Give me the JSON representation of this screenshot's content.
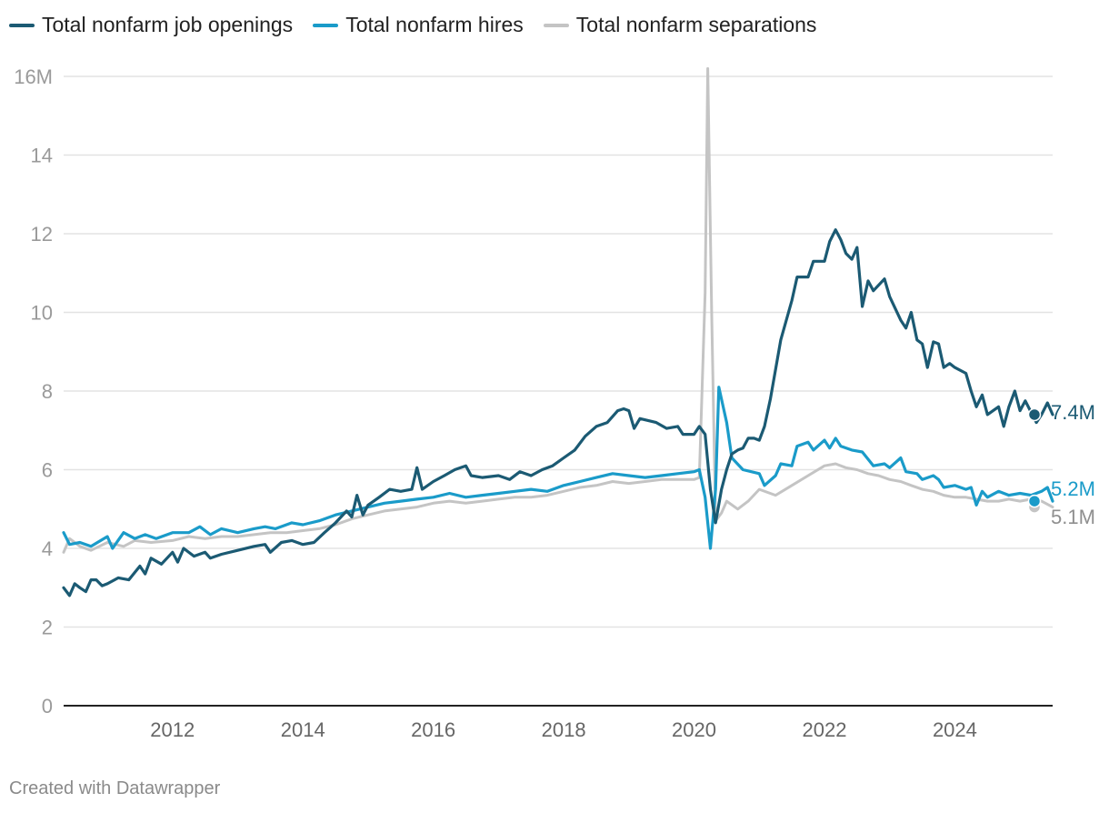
{
  "chart_data": {
    "type": "line",
    "title": "",
    "xlabel": "",
    "ylabel": "",
    "ylim": [
      0,
      16
    ],
    "xlim": [
      2010.33,
      2025.5
    ],
    "y_ticks": [
      0,
      2,
      4,
      6,
      8,
      10,
      12,
      14,
      16
    ],
    "y_tick_labels": [
      "0",
      "2",
      "4",
      "6",
      "8",
      "10",
      "12",
      "14",
      "16M"
    ],
    "x_ticks": [
      2012,
      2014,
      2016,
      2018,
      2020,
      2022,
      2024
    ],
    "x_tick_labels": [
      "2012",
      "2014",
      "2016",
      "2018",
      "2020",
      "2022",
      "2024"
    ],
    "legend_position": "top-left",
    "series": [
      {
        "name": "Total nonfarm job openings",
        "color": "#1b5a73",
        "end_label": "7.4M",
        "points": [
          [
            2010.33,
            3.0
          ],
          [
            2010.42,
            2.8
          ],
          [
            2010.5,
            3.1
          ],
          [
            2010.58,
            3.0
          ],
          [
            2010.67,
            2.9
          ],
          [
            2010.75,
            3.2
          ],
          [
            2010.83,
            3.2
          ],
          [
            2010.92,
            3.05
          ],
          [
            2011.0,
            3.1
          ],
          [
            2011.17,
            3.25
          ],
          [
            2011.33,
            3.2
          ],
          [
            2011.5,
            3.55
          ],
          [
            2011.58,
            3.35
          ],
          [
            2011.67,
            3.75
          ],
          [
            2011.83,
            3.6
          ],
          [
            2012.0,
            3.9
          ],
          [
            2012.08,
            3.65
          ],
          [
            2012.17,
            4.0
          ],
          [
            2012.33,
            3.8
          ],
          [
            2012.5,
            3.9
          ],
          [
            2012.58,
            3.75
          ],
          [
            2012.75,
            3.85
          ],
          [
            2013.0,
            3.95
          ],
          [
            2013.25,
            4.05
          ],
          [
            2013.42,
            4.1
          ],
          [
            2013.5,
            3.9
          ],
          [
            2013.67,
            4.15
          ],
          [
            2013.83,
            4.2
          ],
          [
            2014.0,
            4.1
          ],
          [
            2014.17,
            4.15
          ],
          [
            2014.33,
            4.4
          ],
          [
            2014.5,
            4.65
          ],
          [
            2014.67,
            4.95
          ],
          [
            2014.75,
            4.8
          ],
          [
            2014.83,
            5.35
          ],
          [
            2014.92,
            4.85
          ],
          [
            2015.0,
            5.1
          ],
          [
            2015.17,
            5.3
          ],
          [
            2015.33,
            5.5
          ],
          [
            2015.5,
            5.45
          ],
          [
            2015.67,
            5.5
          ],
          [
            2015.75,
            6.05
          ],
          [
            2015.83,
            5.5
          ],
          [
            2016.0,
            5.7
          ],
          [
            2016.17,
            5.85
          ],
          [
            2016.33,
            6.0
          ],
          [
            2016.5,
            6.1
          ],
          [
            2016.58,
            5.85
          ],
          [
            2016.75,
            5.8
          ],
          [
            2017.0,
            5.85
          ],
          [
            2017.17,
            5.75
          ],
          [
            2017.33,
            5.95
          ],
          [
            2017.5,
            5.85
          ],
          [
            2017.67,
            6.0
          ],
          [
            2017.83,
            6.1
          ],
          [
            2018.0,
            6.3
          ],
          [
            2018.17,
            6.5
          ],
          [
            2018.33,
            6.85
          ],
          [
            2018.5,
            7.1
          ],
          [
            2018.67,
            7.2
          ],
          [
            2018.83,
            7.5
          ],
          [
            2018.92,
            7.55
          ],
          [
            2019.0,
            7.5
          ],
          [
            2019.08,
            7.05
          ],
          [
            2019.17,
            7.3
          ],
          [
            2019.42,
            7.2
          ],
          [
            2019.58,
            7.05
          ],
          [
            2019.75,
            7.1
          ],
          [
            2019.83,
            6.9
          ],
          [
            2020.0,
            6.9
          ],
          [
            2020.08,
            7.1
          ],
          [
            2020.17,
            6.9
          ],
          [
            2020.25,
            5.5
          ],
          [
            2020.33,
            4.65
          ],
          [
            2020.42,
            5.5
          ],
          [
            2020.5,
            6.0
          ],
          [
            2020.58,
            6.4
          ],
          [
            2020.67,
            6.5
          ],
          [
            2020.75,
            6.55
          ],
          [
            2020.83,
            6.8
          ],
          [
            2020.92,
            6.8
          ],
          [
            2021.0,
            6.75
          ],
          [
            2021.08,
            7.1
          ],
          [
            2021.17,
            7.8
          ],
          [
            2021.33,
            9.3
          ],
          [
            2021.5,
            10.3
          ],
          [
            2021.58,
            10.9
          ],
          [
            2021.75,
            10.9
          ],
          [
            2021.83,
            11.3
          ],
          [
            2022.0,
            11.3
          ],
          [
            2022.08,
            11.8
          ],
          [
            2022.17,
            12.1
          ],
          [
            2022.25,
            11.85
          ],
          [
            2022.33,
            11.5
          ],
          [
            2022.42,
            11.35
          ],
          [
            2022.5,
            11.65
          ],
          [
            2022.58,
            10.15
          ],
          [
            2022.67,
            10.8
          ],
          [
            2022.75,
            10.55
          ],
          [
            2022.92,
            10.85
          ],
          [
            2023.0,
            10.4
          ],
          [
            2023.17,
            9.8
          ],
          [
            2023.25,
            9.6
          ],
          [
            2023.33,
            10.0
          ],
          [
            2023.42,
            9.3
          ],
          [
            2023.5,
            9.2
          ],
          [
            2023.58,
            8.6
          ],
          [
            2023.67,
            9.25
          ],
          [
            2023.75,
            9.2
          ],
          [
            2023.83,
            8.6
          ],
          [
            2023.92,
            8.7
          ],
          [
            2024.0,
            8.6
          ],
          [
            2024.17,
            8.45
          ],
          [
            2024.25,
            8.0
          ],
          [
            2024.33,
            7.6
          ],
          [
            2024.42,
            7.9
          ],
          [
            2024.5,
            7.4
          ],
          [
            2024.67,
            7.6
          ],
          [
            2024.75,
            7.1
          ],
          [
            2024.83,
            7.6
          ],
          [
            2024.92,
            8.0
          ],
          [
            2025.0,
            7.5
          ],
          [
            2025.08,
            7.75
          ],
          [
            2025.25,
            7.2
          ],
          [
            2025.33,
            7.4
          ],
          [
            2025.42,
            7.7
          ],
          [
            2025.5,
            7.4
          ]
        ]
      },
      {
        "name": "Total nonfarm hires",
        "color": "#1a9bc9",
        "end_label": "5.2M",
        "points": [
          [
            2010.33,
            4.4
          ],
          [
            2010.42,
            4.1
          ],
          [
            2010.58,
            4.15
          ],
          [
            2010.75,
            4.05
          ],
          [
            2011.0,
            4.3
          ],
          [
            2011.08,
            4.0
          ],
          [
            2011.25,
            4.4
          ],
          [
            2011.42,
            4.25
          ],
          [
            2011.58,
            4.35
          ],
          [
            2011.75,
            4.25
          ],
          [
            2012.0,
            4.4
          ],
          [
            2012.25,
            4.4
          ],
          [
            2012.42,
            4.55
          ],
          [
            2012.58,
            4.35
          ],
          [
            2012.75,
            4.5
          ],
          [
            2013.0,
            4.4
          ],
          [
            2013.25,
            4.5
          ],
          [
            2013.42,
            4.55
          ],
          [
            2013.58,
            4.5
          ],
          [
            2013.83,
            4.65
          ],
          [
            2014.0,
            4.6
          ],
          [
            2014.25,
            4.7
          ],
          [
            2014.5,
            4.85
          ],
          [
            2014.75,
            4.95
          ],
          [
            2015.0,
            5.05
          ],
          [
            2015.25,
            5.15
          ],
          [
            2015.5,
            5.2
          ],
          [
            2015.75,
            5.25
          ],
          [
            2016.0,
            5.3
          ],
          [
            2016.25,
            5.4
          ],
          [
            2016.5,
            5.3
          ],
          [
            2016.75,
            5.35
          ],
          [
            2017.0,
            5.4
          ],
          [
            2017.25,
            5.45
          ],
          [
            2017.5,
            5.5
          ],
          [
            2017.75,
            5.45
          ],
          [
            2018.0,
            5.6
          ],
          [
            2018.25,
            5.7
          ],
          [
            2018.5,
            5.8
          ],
          [
            2018.75,
            5.9
          ],
          [
            2019.0,
            5.85
          ],
          [
            2019.25,
            5.8
          ],
          [
            2019.5,
            5.85
          ],
          [
            2019.75,
            5.9
          ],
          [
            2020.0,
            5.95
          ],
          [
            2020.08,
            6.0
          ],
          [
            2020.17,
            5.3
          ],
          [
            2020.25,
            4.0
          ],
          [
            2020.33,
            5.5
          ],
          [
            2020.38,
            8.1
          ],
          [
            2020.5,
            7.2
          ],
          [
            2020.58,
            6.3
          ],
          [
            2020.75,
            6.0
          ],
          [
            2021.0,
            5.9
          ],
          [
            2021.08,
            5.6
          ],
          [
            2021.25,
            5.85
          ],
          [
            2021.33,
            6.15
          ],
          [
            2021.5,
            6.1
          ],
          [
            2021.58,
            6.6
          ],
          [
            2021.75,
            6.7
          ],
          [
            2021.83,
            6.5
          ],
          [
            2022.0,
            6.75
          ],
          [
            2022.08,
            6.55
          ],
          [
            2022.17,
            6.8
          ],
          [
            2022.25,
            6.6
          ],
          [
            2022.42,
            6.5
          ],
          [
            2022.58,
            6.45
          ],
          [
            2022.75,
            6.1
          ],
          [
            2022.92,
            6.15
          ],
          [
            2023.0,
            6.05
          ],
          [
            2023.17,
            6.3
          ],
          [
            2023.25,
            5.95
          ],
          [
            2023.42,
            5.9
          ],
          [
            2023.5,
            5.75
          ],
          [
            2023.67,
            5.85
          ],
          [
            2023.75,
            5.75
          ],
          [
            2023.83,
            5.55
          ],
          [
            2024.0,
            5.6
          ],
          [
            2024.17,
            5.5
          ],
          [
            2024.25,
            5.55
          ],
          [
            2024.33,
            5.1
          ],
          [
            2024.42,
            5.45
          ],
          [
            2024.5,
            5.3
          ],
          [
            2024.67,
            5.45
          ],
          [
            2024.83,
            5.35
          ],
          [
            2025.0,
            5.4
          ],
          [
            2025.17,
            5.35
          ],
          [
            2025.33,
            5.45
          ],
          [
            2025.42,
            5.55
          ],
          [
            2025.5,
            5.2
          ]
        ]
      },
      {
        "name": "Total nonfarm separations",
        "color": "#c4c4c4",
        "end_label": "5.1M",
        "points": [
          [
            2010.33,
            3.9
          ],
          [
            2010.42,
            4.25
          ],
          [
            2010.58,
            4.05
          ],
          [
            2010.75,
            3.95
          ],
          [
            2011.0,
            4.15
          ],
          [
            2011.25,
            4.05
          ],
          [
            2011.42,
            4.2
          ],
          [
            2011.67,
            4.15
          ],
          [
            2012.0,
            4.2
          ],
          [
            2012.25,
            4.3
          ],
          [
            2012.5,
            4.25
          ],
          [
            2012.75,
            4.3
          ],
          [
            2013.0,
            4.3
          ],
          [
            2013.25,
            4.35
          ],
          [
            2013.5,
            4.4
          ],
          [
            2013.75,
            4.4
          ],
          [
            2014.0,
            4.45
          ],
          [
            2014.25,
            4.5
          ],
          [
            2014.5,
            4.6
          ],
          [
            2014.75,
            4.75
          ],
          [
            2015.0,
            4.85
          ],
          [
            2015.25,
            4.95
          ],
          [
            2015.5,
            5.0
          ],
          [
            2015.75,
            5.05
          ],
          [
            2016.0,
            5.15
          ],
          [
            2016.25,
            5.2
          ],
          [
            2016.5,
            5.15
          ],
          [
            2016.75,
            5.2
          ],
          [
            2017.0,
            5.25
          ],
          [
            2017.25,
            5.3
          ],
          [
            2017.5,
            5.3
          ],
          [
            2017.75,
            5.35
          ],
          [
            2018.0,
            5.45
          ],
          [
            2018.25,
            5.55
          ],
          [
            2018.5,
            5.6
          ],
          [
            2018.75,
            5.7
          ],
          [
            2019.0,
            5.65
          ],
          [
            2019.25,
            5.7
          ],
          [
            2019.5,
            5.75
          ],
          [
            2019.75,
            5.75
          ],
          [
            2020.0,
            5.75
          ],
          [
            2020.08,
            5.8
          ],
          [
            2020.17,
            10.5
          ],
          [
            2020.21,
            16.2
          ],
          [
            2020.27,
            10.0
          ],
          [
            2020.33,
            4.7
          ],
          [
            2020.42,
            4.9
          ],
          [
            2020.5,
            5.2
          ],
          [
            2020.67,
            5.0
          ],
          [
            2020.83,
            5.2
          ],
          [
            2021.0,
            5.5
          ],
          [
            2021.25,
            5.35
          ],
          [
            2021.5,
            5.6
          ],
          [
            2021.75,
            5.85
          ],
          [
            2022.0,
            6.1
          ],
          [
            2022.17,
            6.15
          ],
          [
            2022.33,
            6.05
          ],
          [
            2022.5,
            6.0
          ],
          [
            2022.67,
            5.9
          ],
          [
            2022.83,
            5.85
          ],
          [
            2023.0,
            5.75
          ],
          [
            2023.17,
            5.7
          ],
          [
            2023.33,
            5.6
          ],
          [
            2023.5,
            5.5
          ],
          [
            2023.67,
            5.45
          ],
          [
            2023.83,
            5.35
          ],
          [
            2024.0,
            5.3
          ],
          [
            2024.17,
            5.3
          ],
          [
            2024.33,
            5.25
          ],
          [
            2024.5,
            5.2
          ],
          [
            2024.67,
            5.2
          ],
          [
            2024.83,
            5.25
          ],
          [
            2025.0,
            5.2
          ],
          [
            2025.17,
            5.25
          ],
          [
            2025.33,
            5.2
          ],
          [
            2025.5,
            5.05
          ]
        ]
      }
    ]
  },
  "credit": "Created with Datawrapper"
}
